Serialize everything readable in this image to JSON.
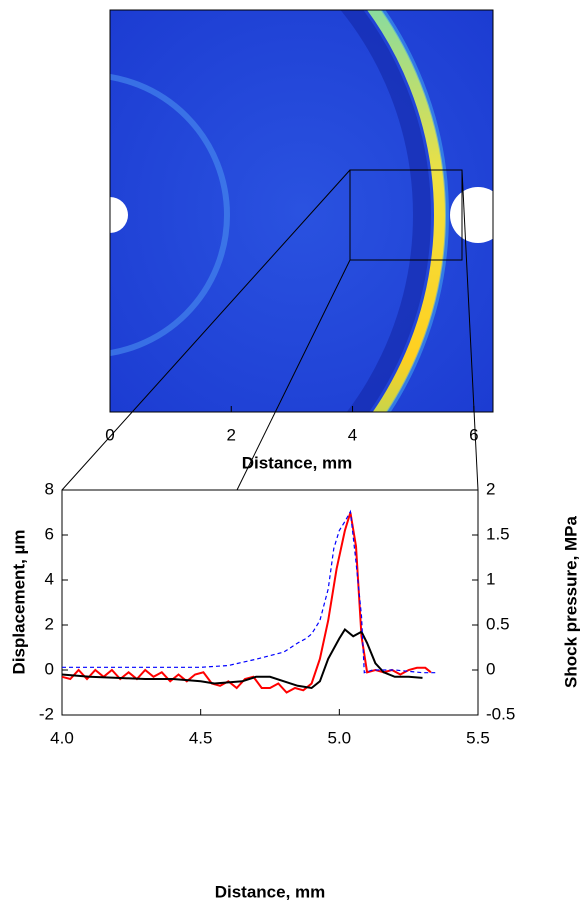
{
  "chart_data": [
    {
      "type": "image",
      "xlabel": "Distance, mm",
      "xlim": [
        0,
        6.3
      ],
      "xticks": [
        0,
        2,
        4,
        6
      ]
    },
    {
      "type": "line",
      "xlabel": "Distance, mm",
      "ylabel": "Displacement, µm",
      "y2label": "Shock pressure, MPa",
      "xlim": [
        4.0,
        5.5
      ],
      "xticks": [
        {
          "value": 4.0,
          "label": "4.0"
        },
        {
          "value": 4.5,
          "label": "4.5"
        },
        {
          "value": 5.0,
          "label": "5.0"
        },
        {
          "value": 5.5,
          "label": "5.5"
        }
      ],
      "ylim": [
        -2,
        8
      ],
      "yticks": [
        -2,
        0,
        2,
        4,
        6,
        8
      ],
      "y2lim": [
        -0.5,
        2
      ],
      "y2ticks": [
        -0.5,
        0,
        0.5,
        1,
        1.5,
        2
      ],
      "series": [
        {
          "color": "#ff0000",
          "dash": false,
          "x": [
            4.0,
            4.03,
            4.06,
            4.09,
            4.12,
            4.15,
            4.18,
            4.21,
            4.24,
            4.27,
            4.3,
            4.33,
            4.36,
            4.39,
            4.42,
            4.45,
            4.48,
            4.51,
            4.54,
            4.57,
            4.6,
            4.63,
            4.66,
            4.69,
            4.72,
            4.75,
            4.78,
            4.81,
            4.84,
            4.87,
            4.9,
            4.93,
            4.96,
            4.99,
            5.02,
            5.04,
            5.06,
            5.08,
            5.1,
            5.13,
            5.16,
            5.19,
            5.22,
            5.25,
            5.28,
            5.31,
            5.33
          ],
          "values": [
            -0.3,
            -0.4,
            0.0,
            -0.4,
            0.0,
            -0.3,
            0.0,
            -0.4,
            -0.1,
            -0.4,
            0.0,
            -0.3,
            -0.1,
            -0.5,
            -0.2,
            -0.5,
            -0.2,
            -0.1,
            -0.6,
            -0.7,
            -0.5,
            -0.8,
            -0.4,
            -0.3,
            -0.8,
            -0.8,
            -0.6,
            -1.0,
            -0.8,
            -0.9,
            -0.6,
            0.5,
            2.2,
            4.5,
            6.2,
            7.0,
            5.5,
            1.5,
            -0.1,
            0.0,
            -0.1,
            0.0,
            -0.2,
            0.0,
            0.1,
            0.1,
            -0.1
          ]
        },
        {
          "color": "#000000",
          "dash": false,
          "x": [
            4.0,
            4.1,
            4.2,
            4.3,
            4.4,
            4.5,
            4.55,
            4.6,
            4.65,
            4.7,
            4.75,
            4.8,
            4.85,
            4.9,
            4.93,
            4.96,
            5.0,
            5.02,
            5.05,
            5.08,
            5.1,
            5.13,
            5.16,
            5.2,
            5.25,
            5.3
          ],
          "values": [
            -0.2,
            -0.3,
            -0.35,
            -0.4,
            -0.4,
            -0.5,
            -0.6,
            -0.55,
            -0.5,
            -0.3,
            -0.3,
            -0.5,
            -0.7,
            -0.8,
            -0.5,
            0.5,
            1.4,
            1.8,
            1.5,
            1.7,
            1.2,
            0.3,
            -0.1,
            -0.3,
            -0.3,
            -0.35
          ]
        },
        {
          "color": "#0000ff",
          "dash": true,
          "axis": "y2",
          "x": [
            4.0,
            4.5,
            4.6,
            4.7,
            4.8,
            4.85,
            4.88,
            4.9,
            4.93,
            4.96,
            4.98,
            5.0,
            5.02,
            5.04,
            5.06,
            5.08,
            5.09,
            5.12,
            5.2,
            5.3,
            5.35
          ],
          "values": [
            0.03,
            0.03,
            0.05,
            0.12,
            0.2,
            0.3,
            0.35,
            0.4,
            0.55,
            0.9,
            1.35,
            1.55,
            1.65,
            1.76,
            1.2,
            0.6,
            -0.03,
            0.0,
            0.0,
            -0.03,
            -0.03
          ]
        }
      ]
    }
  ]
}
